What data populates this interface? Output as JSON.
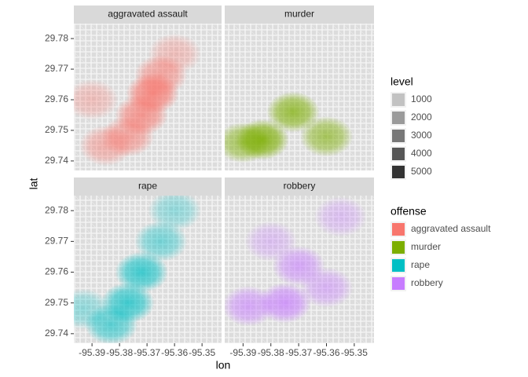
{
  "chart_data": {
    "type": "density2d",
    "xlabel": "lon",
    "ylabel": "lat",
    "xlim": [
      -95.3966,
      -95.3429
    ],
    "ylim": [
      29.7369,
      29.7849
    ],
    "xticks": [
      -95.39,
      -95.38,
      -95.37,
      -95.36,
      -95.35
    ],
    "yticks": [
      29.74,
      29.75,
      29.76,
      29.77,
      29.78
    ],
    "size_legend": {
      "title": "level",
      "levels": [
        1000,
        2000,
        3000,
        4000,
        5000
      ],
      "colors": [
        "#c2c2c2",
        "#9a9a9a",
        "#777777",
        "#565656",
        "#333333"
      ]
    },
    "color_legend_title": "offense",
    "series": [
      {
        "name": "aggravated assault",
        "color": "#f8766d",
        "x": [
          -95.368,
          -95.372,
          -95.377,
          -95.365,
          -95.385,
          -95.36,
          -95.39
        ],
        "y": [
          29.762,
          29.755,
          29.748,
          29.768,
          29.745,
          29.775,
          29.76
        ],
        "values": [
          5000,
          4000,
          3000,
          3000,
          2000,
          1000,
          1000
        ]
      },
      {
        "name": "murder",
        "color": "#7cae00",
        "x": [
          -95.372,
          -95.383,
          -95.36,
          -95.39
        ],
        "y": [
          29.756,
          29.747,
          29.748,
          29.746
        ],
        "values": [
          4000,
          5000,
          3000,
          3000
        ]
      },
      {
        "name": "rape",
        "color": "#00bfc4",
        "x": [
          -95.372,
          -95.377,
          -95.365,
          -95.383,
          -95.393,
          -95.36
        ],
        "y": [
          29.76,
          29.75,
          29.77,
          29.743,
          29.748,
          29.78
        ],
        "values": [
          4000,
          4000,
          2000,
          3000,
          1000,
          1000
        ]
      },
      {
        "name": "robbery",
        "color": "#c77cff",
        "x": [
          -95.375,
          -95.37,
          -95.388,
          -95.36,
          -95.355,
          -95.38
        ],
        "y": [
          29.75,
          29.762,
          29.749,
          29.755,
          29.778,
          29.77
        ],
        "values": [
          4000,
          3000,
          3000,
          2000,
          1000,
          1000
        ]
      }
    ]
  }
}
